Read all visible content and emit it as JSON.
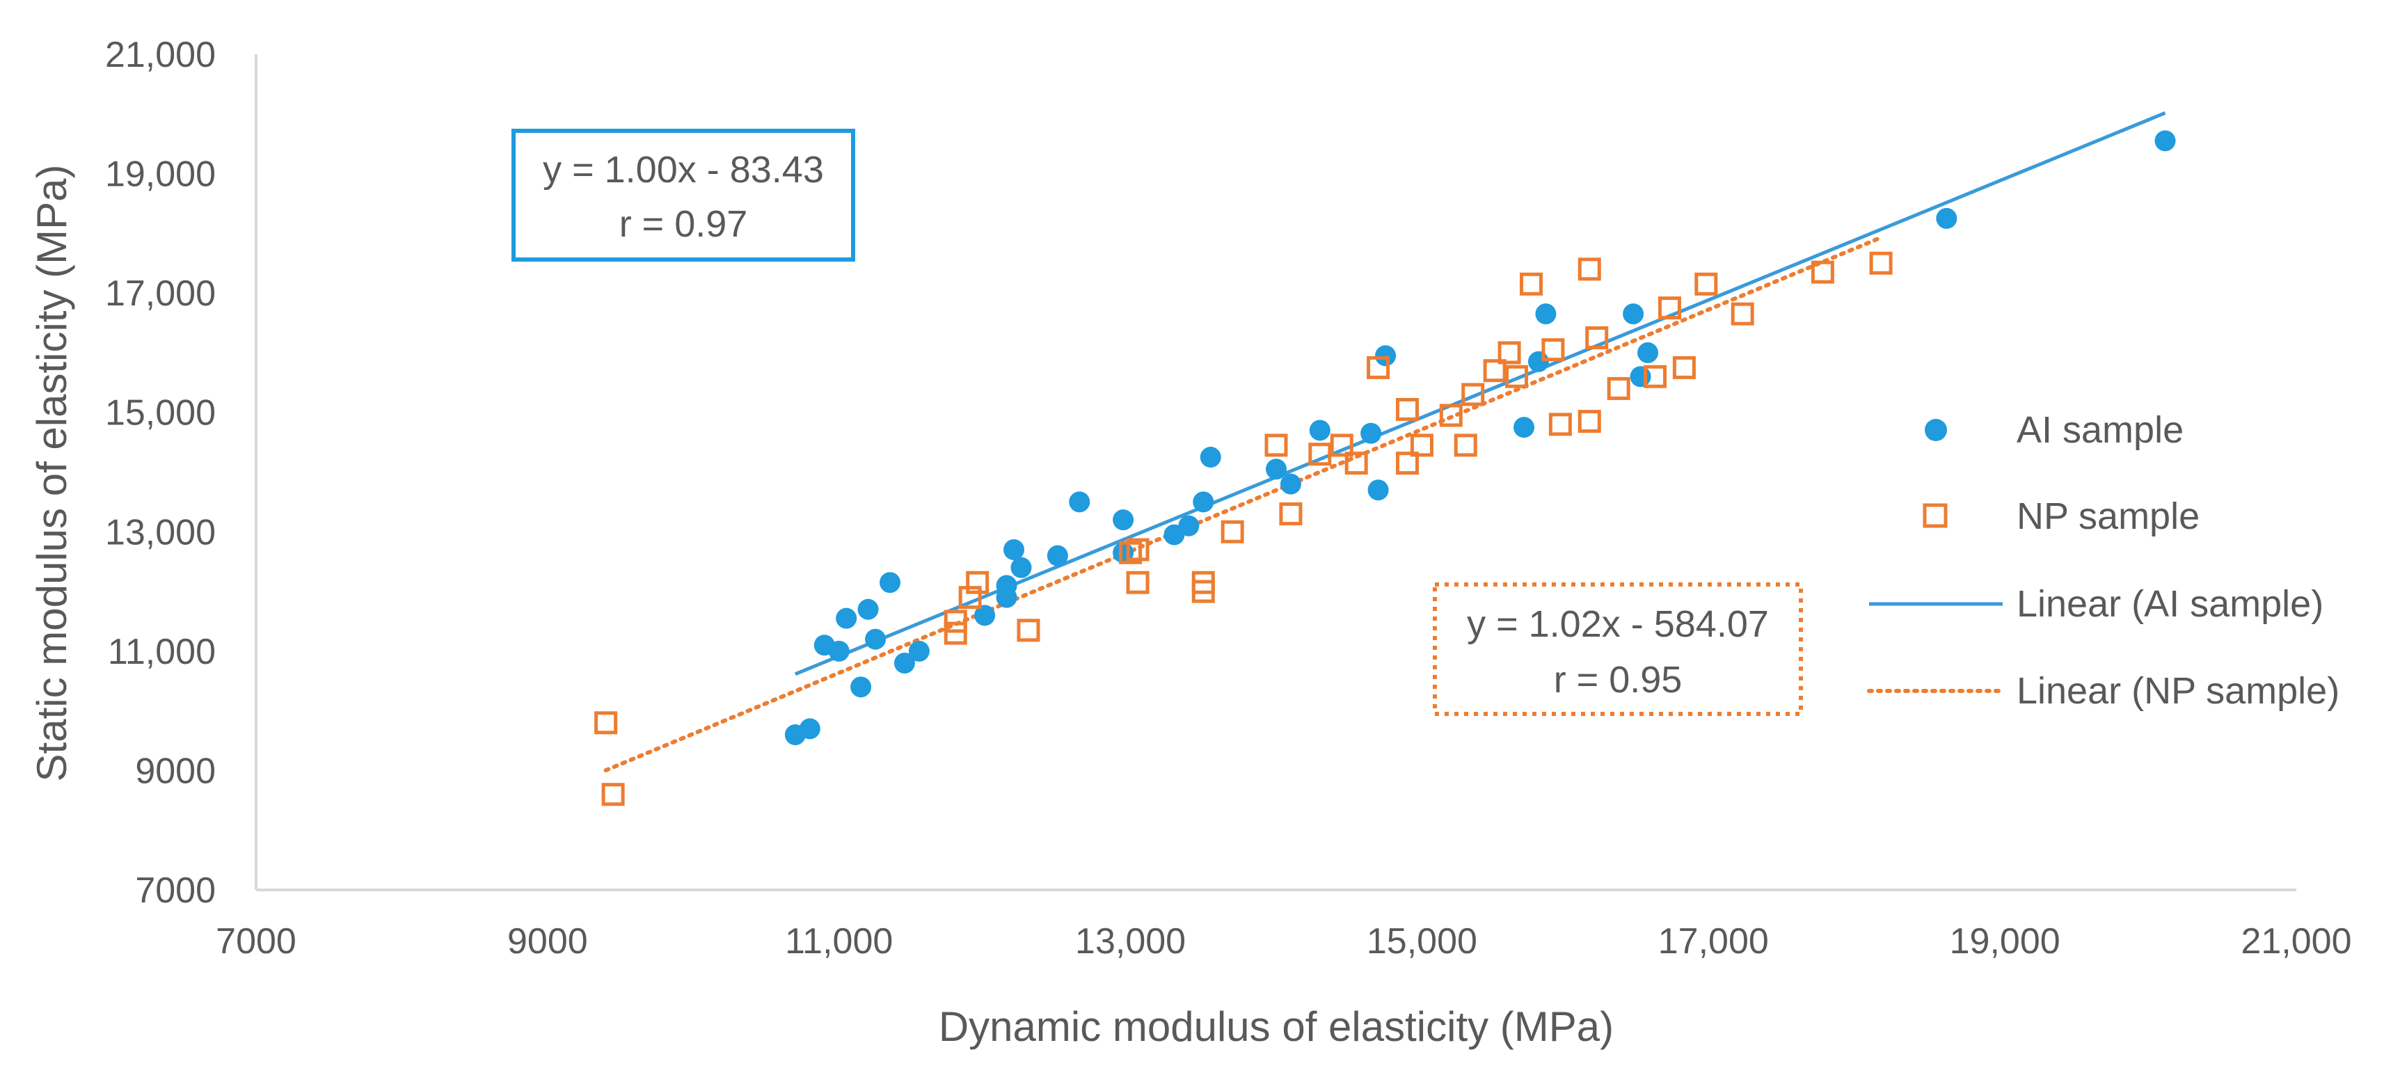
{
  "chart_data": {
    "type": "scatter",
    "title": "",
    "xlabel": "Dynamic modulus of elasticity (MPa)",
    "ylabel": "Static modulus of elasticity (MPa)",
    "xlim": [
      7000,
      21000
    ],
    "ylim": [
      7000,
      21000
    ],
    "xticks": [
      7000,
      9000,
      11000,
      13000,
      15000,
      17000,
      19000,
      21000
    ],
    "yticks": [
      7000,
      9000,
      11000,
      13000,
      15000,
      17000,
      19000,
      21000
    ],
    "xtick_labels": [
      "7000",
      "9000",
      "11,000",
      "13,000",
      "15,000",
      "17,000",
      "19,000",
      "21,000"
    ],
    "ytick_labels": [
      "7000",
      "9000",
      "11,000",
      "13,000",
      "15,000",
      "17,000",
      "19,000",
      "21,000"
    ],
    "grid": false,
    "legend_position": "right",
    "series": [
      {
        "name": "AI sample",
        "marker": "filled-circle",
        "color": "#1f9bde",
        "points": [
          [
            10700,
            9600
          ],
          [
            10800,
            9700
          ],
          [
            10900,
            11100
          ],
          [
            11000,
            11000
          ],
          [
            11050,
            11550
          ],
          [
            11150,
            10400
          ],
          [
            11200,
            11700
          ],
          [
            11250,
            11200
          ],
          [
            11350,
            12150
          ],
          [
            11450,
            10800
          ],
          [
            11550,
            11000
          ],
          [
            12000,
            11600
          ],
          [
            12150,
            12100
          ],
          [
            12150,
            11900
          ],
          [
            12200,
            12700
          ],
          [
            12250,
            12400
          ],
          [
            12500,
            12600
          ],
          [
            12650,
            13500
          ],
          [
            12950,
            13200
          ],
          [
            12950,
            12650
          ],
          [
            13300,
            12950
          ],
          [
            13400,
            13100
          ],
          [
            13500,
            13500
          ],
          [
            13550,
            14250
          ],
          [
            14000,
            14050
          ],
          [
            14100,
            13800
          ],
          [
            14300,
            14700
          ],
          [
            14650,
            14650
          ],
          [
            14700,
            13700
          ],
          [
            14750,
            15950
          ],
          [
            15700,
            14750
          ],
          [
            15800,
            15850
          ],
          [
            15850,
            16650
          ],
          [
            16450,
            16650
          ],
          [
            16500,
            15600
          ],
          [
            16550,
            16000
          ],
          [
            18600,
            18250
          ],
          [
            20100,
            19550
          ]
        ]
      },
      {
        "name": "NP sample",
        "marker": "hollow-square",
        "color": "#ed7d31",
        "points": [
          [
            9400,
            9800
          ],
          [
            9450,
            8600
          ],
          [
            11800,
            11300
          ],
          [
            11800,
            11500
          ],
          [
            11900,
            11900
          ],
          [
            11950,
            12150
          ],
          [
            12300,
            11350
          ],
          [
            13000,
            12650
          ],
          [
            13050,
            12700
          ],
          [
            13050,
            12150
          ],
          [
            13500,
            12150
          ],
          [
            13500,
            12000
          ],
          [
            13700,
            13000
          ],
          [
            14000,
            14450
          ],
          [
            14100,
            13300
          ],
          [
            14300,
            14300
          ],
          [
            14450,
            14450
          ],
          [
            14550,
            14150
          ],
          [
            14700,
            15750
          ],
          [
            14900,
            15050
          ],
          [
            14900,
            14150
          ],
          [
            15000,
            14450
          ],
          [
            15200,
            14950
          ],
          [
            15300,
            14450
          ],
          [
            15350,
            15300
          ],
          [
            15500,
            15700
          ],
          [
            15600,
            16000
          ],
          [
            15650,
            15600
          ],
          [
            15750,
            17150
          ],
          [
            15900,
            16050
          ],
          [
            15950,
            14800
          ],
          [
            16150,
            14850
          ],
          [
            16150,
            17400
          ],
          [
            16200,
            16250
          ],
          [
            16350,
            15400
          ],
          [
            16600,
            15600
          ],
          [
            16700,
            16750
          ],
          [
            16800,
            15750
          ],
          [
            16950,
            17150
          ],
          [
            17200,
            16650
          ],
          [
            17750,
            17350
          ],
          [
            18150,
            17500
          ]
        ]
      }
    ],
    "trendlines": [
      {
        "name": "Linear (AI sample)",
        "style": "solid",
        "color": "#3a9ad9",
        "slope": 1.0,
        "intercept": -83.43,
        "x_range": [
          10700,
          20100
        ]
      },
      {
        "name": "Linear (NP sample)",
        "style": "dotted",
        "color": "#ed7d31",
        "slope": 1.02,
        "intercept": -584.07,
        "x_range": [
          9400,
          18150
        ]
      }
    ],
    "annotations": [
      {
        "series": "AI sample",
        "line1": "y = 1.00x - 83.43",
        "line2": "r = 0.97",
        "border": "solid",
        "color": "#1f9bde"
      },
      {
        "series": "NP sample",
        "line1": "y = 1.02x - 584.07",
        "line2": "r = 0.95",
        "border": "dotted",
        "color": "#ed7d31"
      }
    ],
    "legend": [
      {
        "label": "AI sample",
        "kind": "filled-circle",
        "color": "#1f9bde"
      },
      {
        "label": "NP sample",
        "kind": "hollow-square",
        "color": "#ed7d31"
      },
      {
        "label": "Linear (AI sample)",
        "kind": "solid-line",
        "color": "#3a9ad9"
      },
      {
        "label": "Linear (NP sample)",
        "kind": "dotted-line",
        "color": "#ed7d31"
      }
    ]
  }
}
